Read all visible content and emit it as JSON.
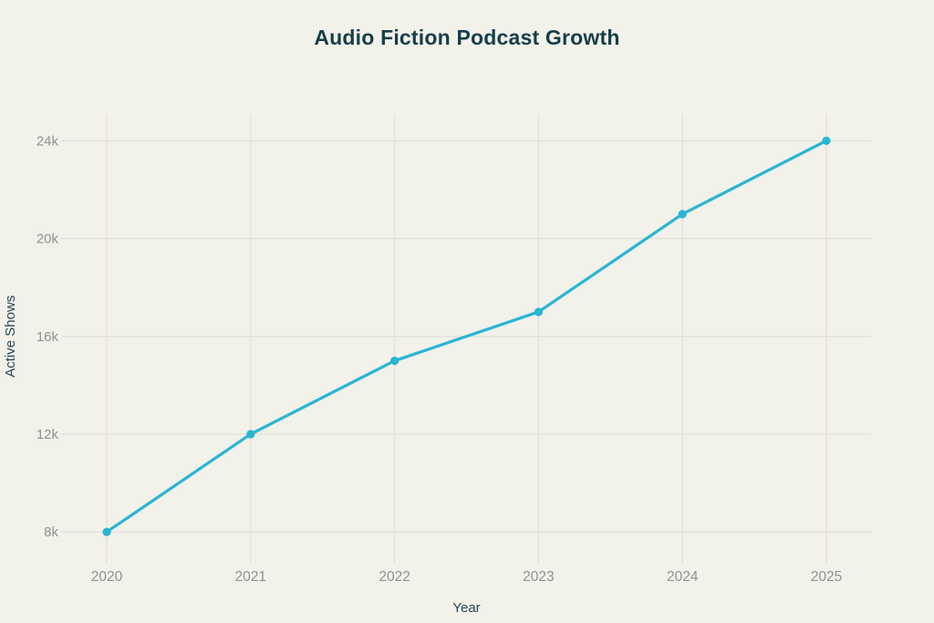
{
  "chart_data": {
    "type": "line",
    "title": "Audio Fiction Podcast Growth",
    "xlabel": "Year",
    "ylabel": "Active Shows",
    "categories": [
      "2020",
      "2021",
      "2022",
      "2023",
      "2024",
      "2025"
    ],
    "series": [
      {
        "name": "Active Shows",
        "values": [
          8000,
          12000,
          15000,
          17000,
          21000,
          24000
        ]
      }
    ],
    "y_ticks": [
      {
        "value": 8000,
        "label": "8k"
      },
      {
        "value": 12000,
        "label": "12k"
      },
      {
        "value": 16000,
        "label": "16k"
      },
      {
        "value": 20000,
        "label": "20k"
      },
      {
        "value": 24000,
        "label": "24k"
      }
    ],
    "ylim": [
      7000,
      25100
    ],
    "grid": true,
    "legend": "none",
    "marker": "circle",
    "colors": {
      "background": "#f2f1ea",
      "grid": "#e3e2da",
      "line": "#2ab5d3",
      "marker": "#2ab5d3",
      "title": "#153e49",
      "axis_name": "#254953",
      "tick_label": "#8d9292"
    }
  }
}
